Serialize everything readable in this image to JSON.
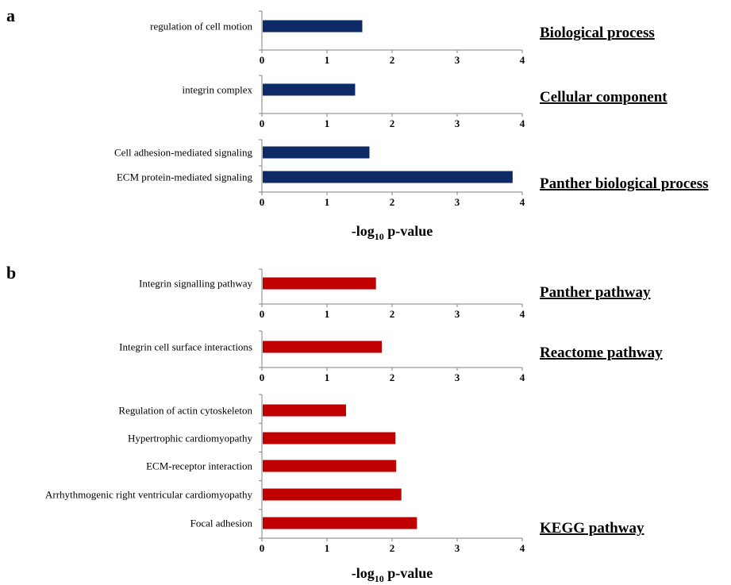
{
  "panels": [
    {
      "label": "a",
      "xlabel": "-log10 p-value"
    },
    {
      "label": "b",
      "xlabel": "-log10 p-value"
    }
  ],
  "chart_data": [
    {
      "type": "bar",
      "orientation": "horizontal",
      "title": "Biological process",
      "categories": [
        "regulation of cell motion"
      ],
      "values": [
        1.53
      ],
      "xlim": [
        0,
        4
      ],
      "xticks": [
        0,
        1,
        2,
        3,
        4
      ],
      "color": "#0d2a66"
    },
    {
      "type": "bar",
      "orientation": "horizontal",
      "title": "Cellular component",
      "categories": [
        "integrin complex"
      ],
      "values": [
        1.42
      ],
      "xlim": [
        0,
        4
      ],
      "xticks": [
        0,
        1,
        2,
        3,
        4
      ],
      "color": "#0d2a66"
    },
    {
      "type": "bar",
      "orientation": "horizontal",
      "title": "Panther biological process",
      "categories": [
        "Cell adhesion-mediated signaling",
        "ECM protein-mediated signaling"
      ],
      "values": [
        1.64,
        3.84
      ],
      "xlim": [
        0,
        4
      ],
      "xticks": [
        0,
        1,
        2,
        3,
        4
      ],
      "color": "#0d2a66"
    },
    {
      "type": "bar",
      "orientation": "horizontal",
      "title": "Panther pathway",
      "categories": [
        "Integrin signalling pathway"
      ],
      "values": [
        1.74
      ],
      "xlim": [
        0,
        4
      ],
      "xticks": [
        0,
        1,
        2,
        3,
        4
      ],
      "color": "#c00000"
    },
    {
      "type": "bar",
      "orientation": "horizontal",
      "title": "Reactome pathway",
      "categories": [
        "Integrin cell surface interactions"
      ],
      "values": [
        1.83
      ],
      "xlim": [
        0,
        4
      ],
      "xticks": [
        0,
        1,
        2,
        3,
        4
      ],
      "color": "#c00000"
    },
    {
      "type": "bar",
      "orientation": "horizontal",
      "title": "KEGG pathway",
      "categories": [
        "Regulation of actin cytoskeleton",
        "Hypertrophic cardiomyopathy",
        "ECM-receptor interaction",
        "Arrhythmogenic right ventricular cardiomyopathy",
        "Focal adhesion"
      ],
      "values": [
        1.28,
        2.04,
        2.05,
        2.13,
        2.37
      ],
      "xlim": [
        0,
        4
      ],
      "xticks": [
        0,
        1,
        2,
        3,
        4
      ],
      "color": "#c00000"
    }
  ]
}
